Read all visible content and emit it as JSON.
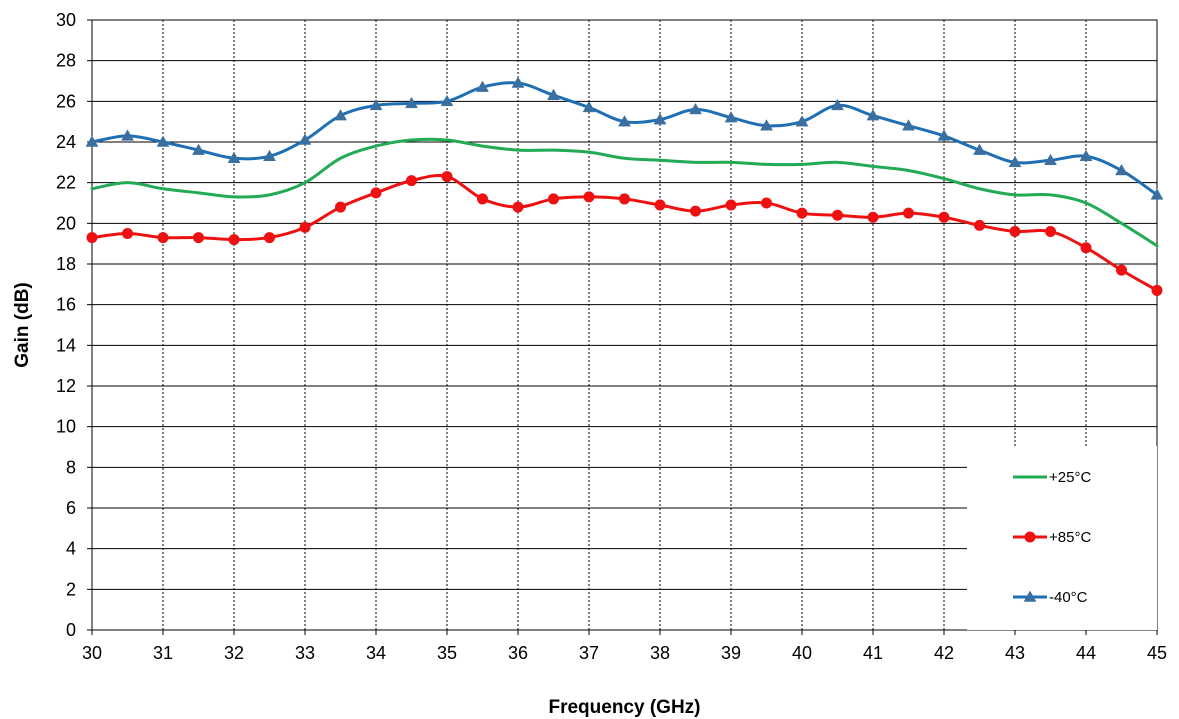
{
  "chart_data": {
    "type": "line",
    "xlabel": "Frequency (GHz)",
    "ylabel": "Gain (dB)",
    "xlim": [
      30,
      45
    ],
    "ylim": [
      0,
      30
    ],
    "x_ticks": [
      30,
      31,
      32,
      33,
      34,
      35,
      36,
      37,
      38,
      39,
      40,
      41,
      42,
      43,
      44,
      45
    ],
    "y_ticks": [
      0,
      2,
      4,
      6,
      8,
      10,
      12,
      14,
      16,
      18,
      20,
      22,
      24,
      26,
      28,
      30
    ],
    "grid": {
      "horizontal": "solid",
      "vertical": "dashed"
    },
    "legend_position": "bottom-right",
    "series": [
      {
        "name": "+25°C",
        "color": "#22aa55",
        "marker": "none",
        "x": [
          30,
          30.5,
          31,
          31.5,
          32,
          32.5,
          33,
          33.5,
          34,
          34.5,
          35,
          35.5,
          36,
          36.5,
          37,
          37.5,
          38,
          38.5,
          39,
          39.5,
          40,
          40.5,
          41,
          41.5,
          42,
          42.5,
          43,
          43.5,
          44,
          44.5,
          45
        ],
        "values": [
          21.7,
          22.0,
          21.7,
          21.5,
          21.3,
          21.4,
          22.0,
          23.2,
          23.8,
          24.1,
          24.1,
          23.8,
          23.6,
          23.6,
          23.5,
          23.2,
          23.1,
          23.0,
          23.0,
          22.9,
          22.9,
          23.0,
          22.8,
          22.6,
          22.2,
          21.7,
          21.4,
          21.4,
          21.0,
          20.0,
          18.9
        ]
      },
      {
        "name": "+85°C",
        "color": "#ee1111",
        "marker": "circle",
        "x": [
          30,
          30.5,
          31,
          31.5,
          32,
          32.5,
          33,
          33.5,
          34,
          34.5,
          35,
          35.5,
          36,
          36.5,
          37,
          37.5,
          38,
          38.5,
          39,
          39.5,
          40,
          40.5,
          41,
          41.5,
          42,
          42.5,
          43,
          43.5,
          44,
          44.5,
          45
        ],
        "values": [
          19.3,
          19.5,
          19.3,
          19.3,
          19.2,
          19.3,
          19.8,
          20.8,
          21.5,
          22.1,
          22.3,
          21.2,
          20.8,
          21.2,
          21.3,
          21.2,
          20.9,
          20.6,
          20.9,
          21.0,
          20.5,
          20.4,
          20.3,
          20.5,
          20.3,
          19.9,
          19.6,
          19.6,
          18.8,
          17.7,
          16.7
        ]
      },
      {
        "name": "-40°C",
        "color": "#1f6fb4",
        "marker": "triangle",
        "marker_color": "#3a6f9f",
        "x": [
          30,
          30.5,
          31,
          31.5,
          32,
          32.5,
          33,
          33.5,
          34,
          34.5,
          35,
          35.5,
          36,
          36.5,
          37,
          37.5,
          38,
          38.5,
          39,
          39.5,
          40,
          40.5,
          41,
          41.5,
          42,
          42.5,
          43,
          43.5,
          44,
          44.5,
          45
        ],
        "values": [
          24.0,
          24.3,
          24.0,
          23.6,
          23.2,
          23.3,
          24.1,
          25.3,
          25.8,
          25.9,
          26.0,
          26.7,
          26.9,
          26.3,
          25.7,
          25.0,
          25.1,
          25.6,
          25.2,
          24.8,
          25.0,
          25.8,
          25.3,
          24.8,
          24.3,
          23.6,
          23.0,
          23.1,
          23.3,
          22.6,
          21.4
        ]
      }
    ]
  }
}
